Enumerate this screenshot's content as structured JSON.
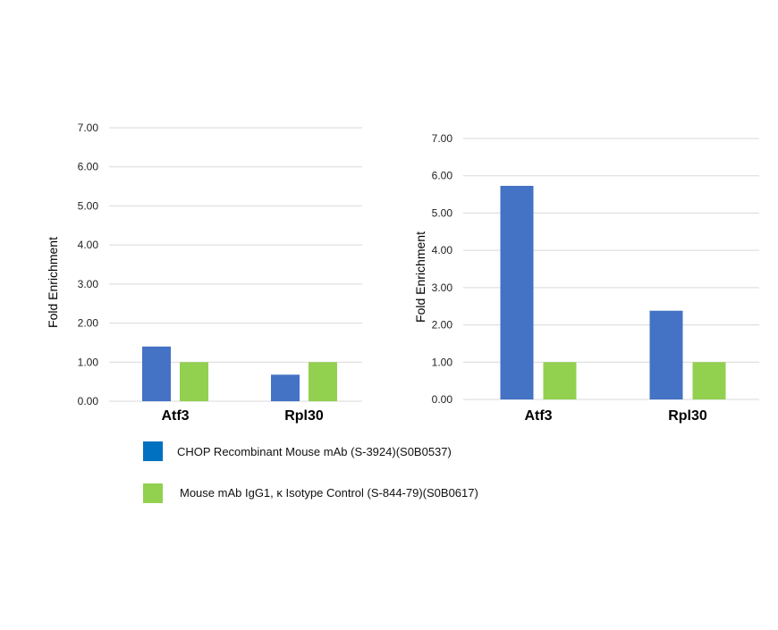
{
  "chart_data": [
    {
      "type": "bar",
      "categories": [
        "Atf3",
        "Rpl30"
      ],
      "series": [
        {
          "name": "CHOP Recombinant Mouse mAb (S-3924)(S0B0537)",
          "values": [
            1.4,
            0.68
          ],
          "color": "#4472c4"
        },
        {
          "name": "Mouse mAb IgG1, κ Isotype Control (S-844-79)(S0B0617)",
          "values": [
            1.0,
            1.0
          ],
          "color": "#92d050"
        }
      ],
      "ylabel": "Fold Enrichment",
      "yticks": [
        "0.00",
        "1.00",
        "2.00",
        "3.00",
        "4.00",
        "5.00",
        "6.00",
        "7.00"
      ],
      "ylim": [
        0,
        7
      ],
      "grid": true
    },
    {
      "type": "bar",
      "categories": [
        "Atf3",
        "Rpl30"
      ],
      "series": [
        {
          "name": "CHOP Recombinant Mouse mAb (S-3924)(S0B0537)",
          "values": [
            5.73,
            2.38
          ],
          "color": "#4472c4"
        },
        {
          "name": "Mouse mAb IgG1, κ Isotype Control (S-844-79)(S0B0617)",
          "values": [
            1.0,
            1.0
          ],
          "color": "#92d050"
        }
      ],
      "ylabel": "Fold Enrichment",
      "yticks": [
        "0.00",
        "1.00",
        "2.00",
        "3.00",
        "4.00",
        "5.00",
        "6.00",
        "7.00"
      ],
      "ylim": [
        0,
        7
      ],
      "grid": true
    }
  ],
  "legend": {
    "placement": "bottom",
    "items": [
      {
        "label": "CHOP Recombinant Mouse mAb (S-3924)(S0B0537)",
        "color": "#0070c0"
      },
      {
        "label": "Mouse mAb IgG1, κ Isotype Control (S-844-79)(S0B0617)",
        "color": "#92d050"
      }
    ]
  }
}
